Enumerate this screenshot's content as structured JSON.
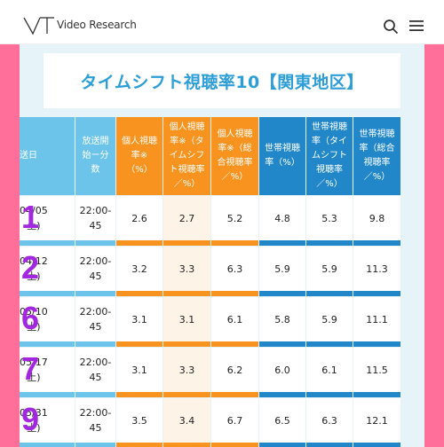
{
  "brand": {
    "name": "Video Research",
    "logo_icon": "vr-logo-icon"
  },
  "header_icons": {
    "search": "search-icon",
    "menu": "hamburger-menu-icon"
  },
  "colors": {
    "accent_pink": "#ff6f9a",
    "title_blue": "#2e9ed6",
    "orange": "#f7931e",
    "blue": "#2287c8",
    "light_blue": "#6dc4ea",
    "rank_purple": "#a327e0"
  },
  "title": "タイムシフト視聴率10【関東地区】",
  "table": {
    "headers": [
      "送日",
      "放送開\n始ー分\n数",
      "個人視聴\n率※\n（%）",
      "個人視聴\n率※（タ\nイムシフ\nト視聴率\n／%）",
      "個人視聴\n率※（総\n合視聴率\n／%）",
      "世帯視聴\n率（%）",
      "世帯視聴\n率（タイ\nムシフト\n視聴率\n／%）",
      "世帯視聴\n率（総合\n視聴率\n／%）"
    ],
    "rows": [
      {
        "rank": "1",
        "date": "04/05\n土)",
        "time": "22:00-\n45",
        "v1": "2.6",
        "v2": "2.7",
        "v3": "5.2",
        "v4": "4.8",
        "v5": "5.3",
        "v6": "9.8"
      },
      {
        "rank": "2",
        "date": "04/12\n土)",
        "time": "22:00-\n45",
        "v1": "3.2",
        "v2": "3.3",
        "v3": "6.3",
        "v4": "5.9",
        "v5": "5.9",
        "v6": "11.3"
      },
      {
        "rank": "6",
        "date": "05/10\n土)",
        "time": "22:00-\n45",
        "v1": "3.1",
        "v2": "3.1",
        "v3": "6.1",
        "v4": "5.8",
        "v5": "5.9",
        "v6": "11.1"
      },
      {
        "rank": "7",
        "date": "05/17\n土)",
        "time": "22:00-\n45",
        "v1": "3.1",
        "v2": "3.3",
        "v3": "6.2",
        "v4": "6.0",
        "v5": "6.1",
        "v6": "11.5"
      },
      {
        "rank": "9",
        "date": "05/31\n土)",
        "time": "22:00-\n45",
        "v1": "3.5",
        "v2": "3.4",
        "v3": "6.7",
        "v4": "6.5",
        "v5": "6.3",
        "v6": "12.1"
      }
    ]
  }
}
